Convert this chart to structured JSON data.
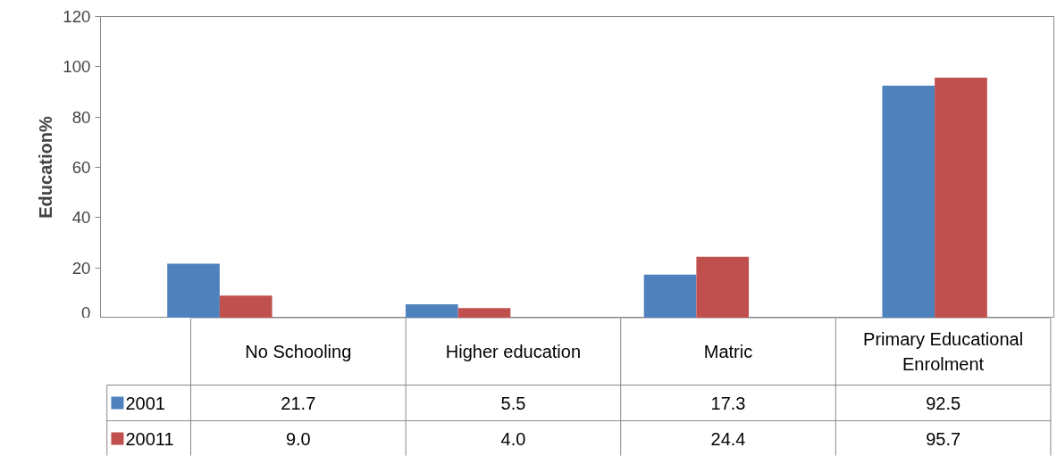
{
  "chart_data": {
    "type": "bar",
    "ylabel": "Education%",
    "categories": [
      "No Schooling",
      "Higher education",
      "Matric",
      "Primary Educational Enrolment"
    ],
    "series": [
      {
        "name": "2001",
        "color": "#4f81bd",
        "values": [
          21.7,
          5.5,
          17.3,
          92.5
        ],
        "value_labels": [
          "21.7",
          "5.5",
          "17.3",
          "92.5"
        ]
      },
      {
        "name": "20011",
        "color": "#c0504d",
        "values": [
          9.0,
          4.0,
          24.4,
          95.7
        ],
        "value_labels": [
          "9.0",
          "4.0",
          "24.4",
          "95.7"
        ]
      }
    ],
    "ylim": [
      0,
      120
    ],
    "yticks": [
      0,
      20,
      40,
      60,
      80,
      100,
      120
    ],
    "grid": false,
    "legend": "bottom"
  }
}
